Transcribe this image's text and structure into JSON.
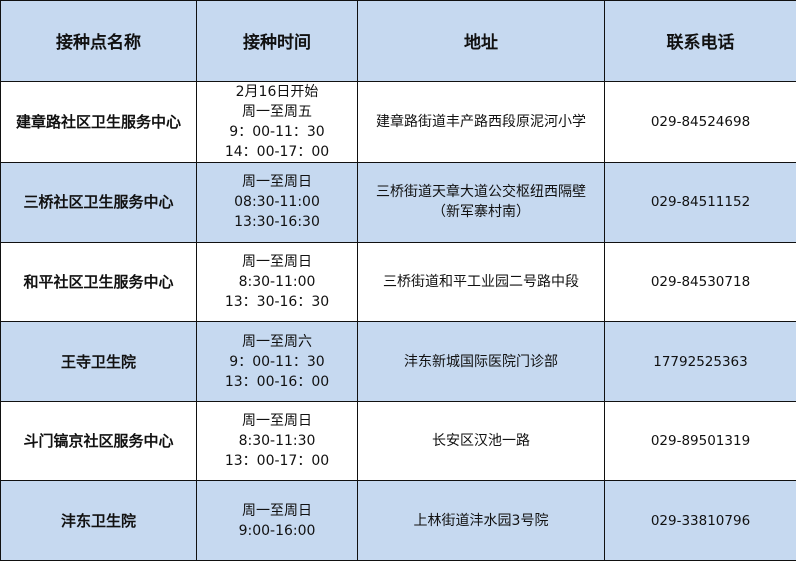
{
  "headers": [
    "接种点名称",
    "接种时间",
    "地址",
    "联系电话"
  ],
  "rows": [
    {
      "name": "建章路社区卫生服务中心",
      "time": [
        "2月16日开始",
        "周一至周五",
        "9：00-11：30",
        "14：00-17：00"
      ],
      "address": [
        "建章路街道丰产路西段原泥河小学"
      ],
      "phone": "029-84524698"
    },
    {
      "name": "三桥社区卫生服务中心",
      "time": [
        "周一至周日",
        "08:30-11:00",
        "13:30-16:30"
      ],
      "address": [
        "三桥街道天章大道公交枢纽西隔壁",
        "（新军寨村南）"
      ],
      "phone": "029-84511152"
    },
    {
      "name": "和平社区卫生服务中心",
      "time": [
        "周一至周日",
        "8:30-11:00",
        "13：30-16：30"
      ],
      "address": [
        "三桥街道和平工业园二号路中段"
      ],
      "phone": "029-84530718"
    },
    {
      "name": "王寺卫生院",
      "time": [
        "周一至周六",
        "9：00-11：30",
        "13：00-16：00"
      ],
      "address": [
        "沣东新城国际医院门诊部"
      ],
      "phone": "17792525363"
    },
    {
      "name": "斗门镐京社区服务中心",
      "time": [
        "周一至周日",
        "8:30-11:30",
        "13：00-17：00"
      ],
      "address": [
        "长安区汉池一路"
      ],
      "phone": "029-89501319"
    },
    {
      "name": "沣东卫生院",
      "time": [
        "周一至周日",
        "9:00-16:00"
      ],
      "address": [
        "上林街道沣水园3号院"
      ],
      "phone": "029-33810796"
    }
  ],
  "colors": {
    "header_bg": "#c6d9f0",
    "alt_row_bg": "#c6d9f0",
    "border": "#111111"
  }
}
